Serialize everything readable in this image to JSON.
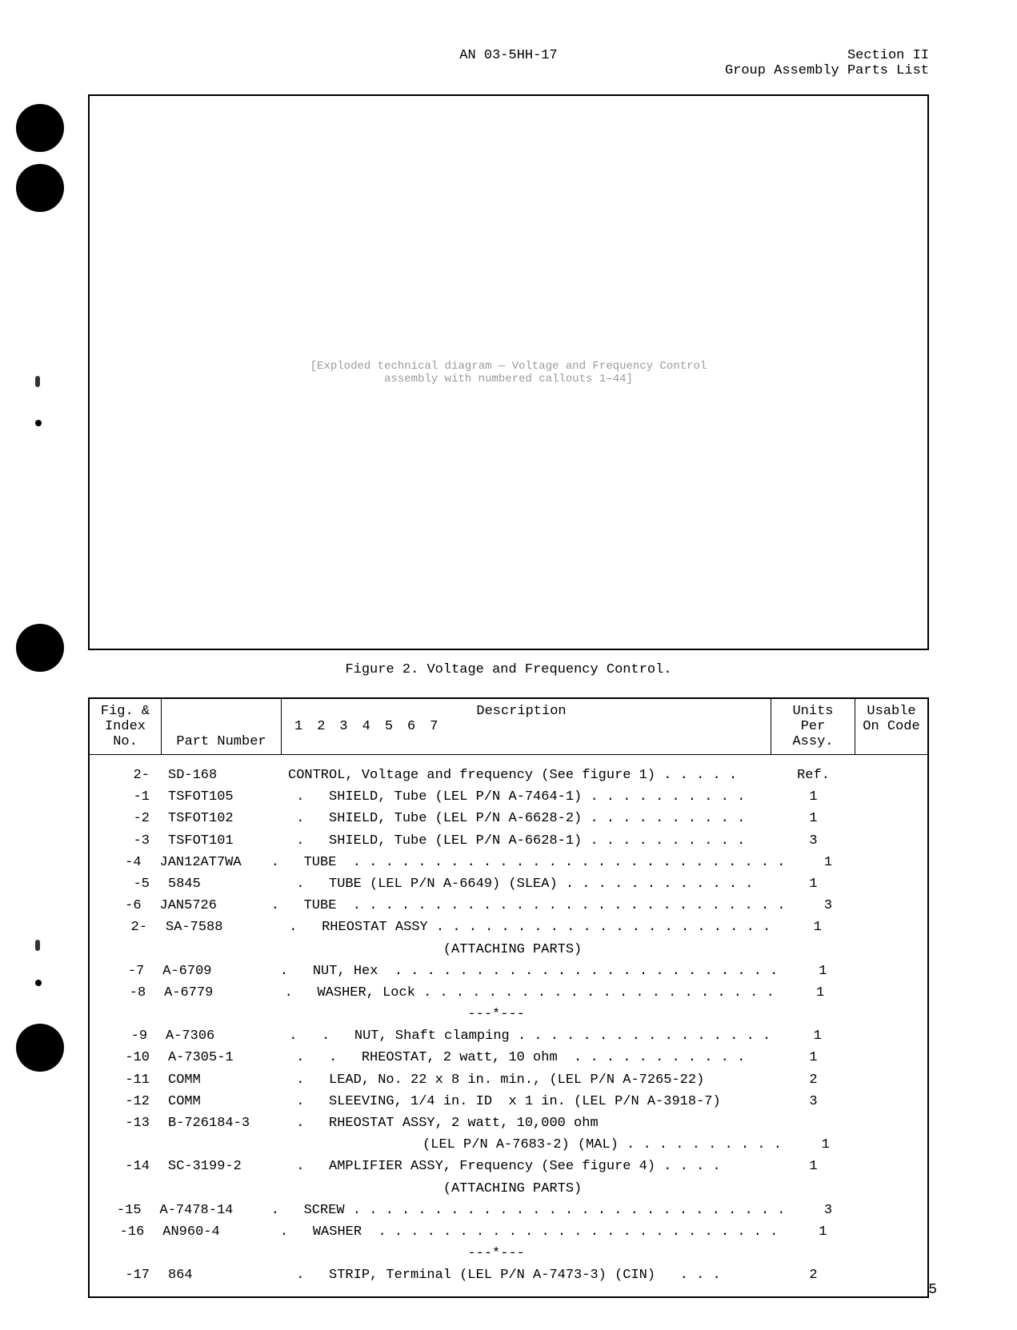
{
  "header": {
    "center": "AN 03-5HH-17",
    "right_line1": "Section II",
    "right_line2": "Group Assembly Parts List"
  },
  "figure": {
    "caption": "Figure 2.  Voltage and Frequency Control.",
    "placeholder": "[Exploded technical diagram — Voltage and Frequency Control assembly with numbered callouts 1–44]"
  },
  "table": {
    "headers": {
      "fig_line1": "Fig. &",
      "fig_line2": "Index No.",
      "part": "Part Number",
      "desc_nums": [
        "1",
        "2",
        "3",
        "4",
        "5",
        "6",
        "7"
      ],
      "desc_label": "Description",
      "units_line1": "Units",
      "units_line2": "Per Assy.",
      "usable_line1": "Usable",
      "usable_line2": "On Code"
    },
    "rows": [
      {
        "fig": "2-",
        "part": "SD-168",
        "desc": "CONTROL, Voltage and frequency (See figure 1) . . . . .",
        "units": "Ref."
      },
      {
        "fig": "-1",
        "part": "TSFOT105",
        "desc": " .   SHIELD, Tube (LEL P/N A-7464-1) . . . . . . . . . .",
        "units": "1"
      },
      {
        "fig": "-2",
        "part": "TSFOT102",
        "desc": " .   SHIELD, Tube (LEL P/N A-6628-2) . . . . . . . . . .",
        "units": "1"
      },
      {
        "fig": "-3",
        "part": "TSFOT101",
        "desc": " .   SHIELD, Tube (LEL P/N A-6628-1) . . . . . . . . . .",
        "units": "3"
      },
      {
        "fig": "-4",
        "part": "JAN12AT7WA",
        "desc": " .   TUBE  . . . . . . . . . . . . . . . . . . . . . . . . . . .",
        "units": "1"
      },
      {
        "fig": "-5",
        "part": "5845",
        "desc": " .   TUBE (LEL P/N A-6649) (SLEA) . . . . . . . . . . . .",
        "units": "1"
      },
      {
        "fig": "-6",
        "part": "JAN5726",
        "desc": " .   TUBE  . . . . . . . . . . . . . . . . . . . . . . . . . . .",
        "units": "3"
      },
      {
        "fig": "2-",
        "part": "SA-7588",
        "desc": " .   RHEOSTAT ASSY . . . . . . . . . . . . . . . . . . . . .",
        "units": "1"
      },
      {
        "fig": "",
        "part": "",
        "desc": "                   (ATTACHING PARTS)",
        "units": ""
      },
      {
        "fig": "-7",
        "part": "A-6709",
        "desc": " .   NUT, Hex  . . . . . . . . . . . . . . . . . . . . . . . .",
        "units": "1"
      },
      {
        "fig": "-8",
        "part": "A-6779",
        "desc": " .   WASHER, Lock . . . . . . . . . . . . . . . . . . . . . .",
        "units": "1"
      },
      {
        "fig": "",
        "part": "",
        "desc": "                      ---*---",
        "units": ""
      },
      {
        "fig": "-9",
        "part": "A-7306",
        "desc": " .   .   NUT, Shaft clamping . . . . . . . . . . . . . . . .",
        "units": "1"
      },
      {
        "fig": "-10",
        "part": "A-7305-1",
        "desc": " .   .   RHEOSTAT, 2 watt, 10 ohm  . . . . . . . . . . .",
        "units": "1"
      },
      {
        "fig": "-11",
        "part": "COMM",
        "desc": " .   LEAD, No. 22 x 8 in. min., (LEL P/N A-7265-22)",
        "units": "2"
      },
      {
        "fig": "-12",
        "part": "COMM",
        "desc": " .   SLEEVING, 1/4 in. ID  x 1 in. (LEL P/N A-3918-7)",
        "units": "3"
      },
      {
        "fig": "-13",
        "part": "B-726184-3",
        "desc": " .   RHEOSTAT ASSY, 2 watt, 10,000 ohm",
        "units": ""
      },
      {
        "fig": "",
        "part": "",
        "desc": "                   (LEL P/N A-7683-2) (MAL) . . . . . . . . . .",
        "units": "1"
      },
      {
        "fig": "-14",
        "part": "SC-3199-2",
        "desc": " .   AMPLIFIER ASSY, Frequency (See figure 4) . . . .",
        "units": "1"
      },
      {
        "fig": "",
        "part": "",
        "desc": "                   (ATTACHING PARTS)",
        "units": ""
      },
      {
        "fig": "-15",
        "part": "A-7478-14",
        "desc": " .   SCREW . . . . . . . . . . . . . . . . . . . . . . . . . . .",
        "units": "3"
      },
      {
        "fig": "-16",
        "part": "AN960-4",
        "desc": " .   WASHER  . . . . . . . . . . . . . . . . . . . . . . . . .",
        "units": "1"
      },
      {
        "fig": "",
        "part": "",
        "desc": "                      ---*---",
        "units": ""
      },
      {
        "fig": "-17",
        "part": "864",
        "desc": " .   STRIP, Terminal (LEL P/N A-7473-3) (CIN)   . . .",
        "units": "2"
      }
    ]
  },
  "page_number": "5"
}
